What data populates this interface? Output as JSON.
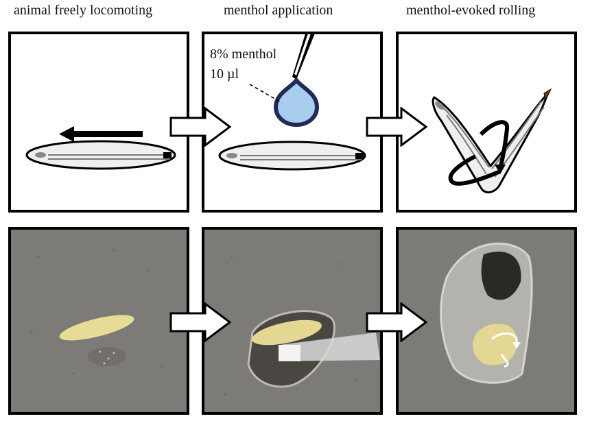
{
  "captions": {
    "left": "animal freely locomoting",
    "middle": "menthol application",
    "right": "menthol-evoked rolling"
  },
  "drop_label": {
    "line1": "8% menthol",
    "line2": "10 µl"
  },
  "colors": {
    "drop_fill": "#a9cdef",
    "drop_outline": "#1f2a57",
    "larva_body": "#efefef",
    "photo_background": "#7d7b77",
    "larva_photo": "#e7dc96"
  }
}
